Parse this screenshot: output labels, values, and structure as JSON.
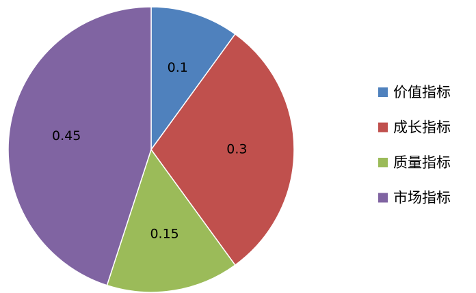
{
  "chart_data": {
    "type": "pie",
    "categories": [
      "价值指标",
      "成长指标",
      "质量指标",
      "市场指标"
    ],
    "values": [
      0.1,
      0.3,
      0.15,
      0.45
    ],
    "colors": [
      "#4f81bd",
      "#c0504d",
      "#9bbb59",
      "#8064a2"
    ],
    "legend": "right"
  }
}
